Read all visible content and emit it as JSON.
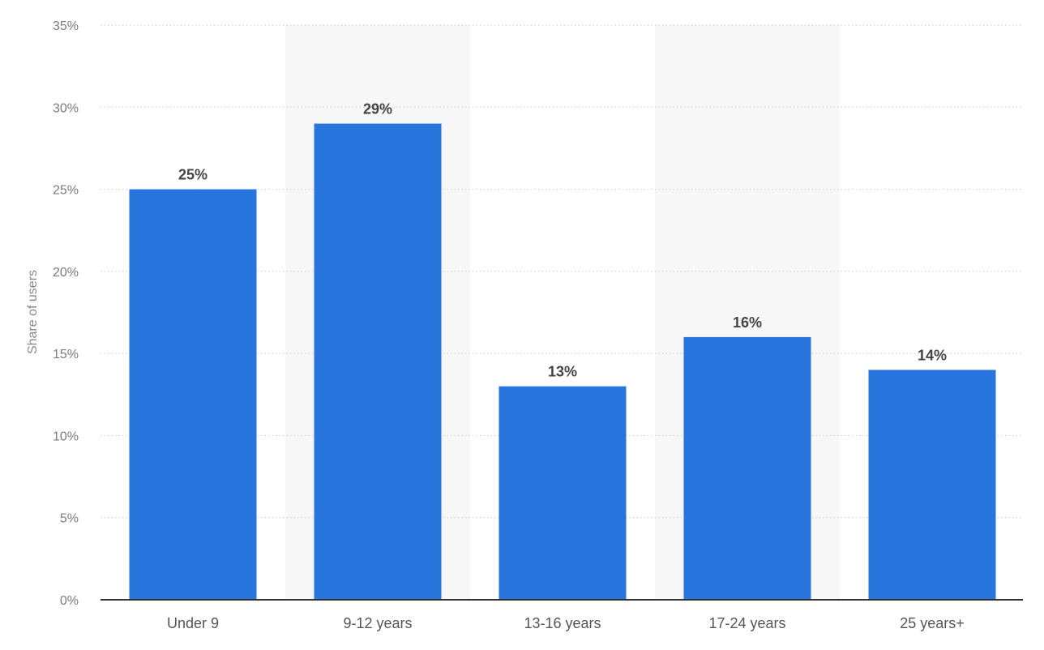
{
  "chart_data": {
    "type": "bar",
    "title": "",
    "xlabel": "",
    "ylabel": "Share of users",
    "categories": [
      "Under 9",
      "9-12 years",
      "13-16 years",
      "17-24 years",
      "25 years+"
    ],
    "values": [
      25,
      29,
      13,
      16,
      14
    ],
    "data_labels": [
      "25%",
      "29%",
      "13%",
      "16%",
      "14%"
    ],
    "y_ticks": [
      0,
      5,
      10,
      15,
      20,
      25,
      30,
      35
    ],
    "y_tick_labels": [
      "0%",
      "5%",
      "10%",
      "15%",
      "20%",
      "25%",
      "30%",
      "35%"
    ],
    "ylim": [
      0,
      35
    ],
    "grid": true,
    "legend": "none",
    "colors": {
      "bar": "#2876dd",
      "band": "#f7f7f7",
      "grid": "#c9c9c9",
      "axis": "#333333"
    }
  }
}
